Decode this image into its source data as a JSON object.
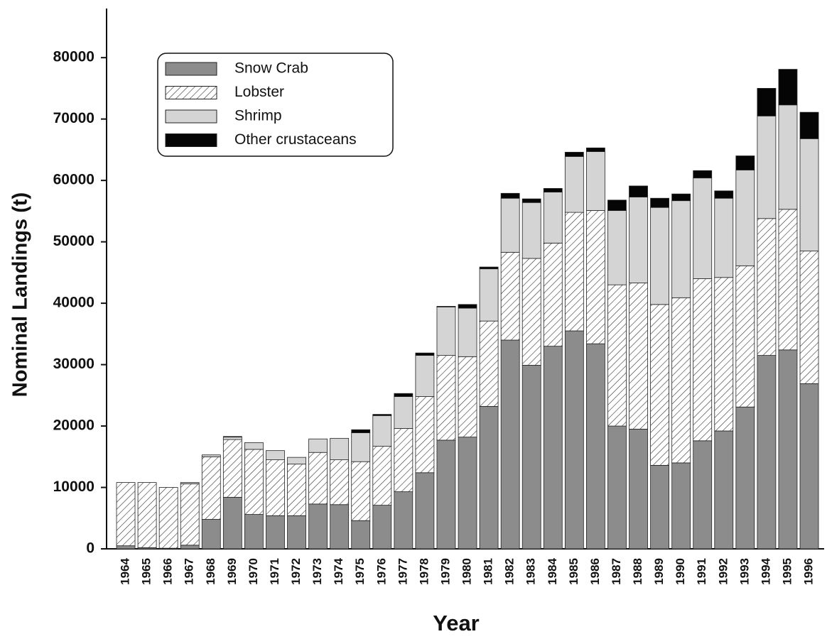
{
  "chart_data": {
    "type": "stacked_bar",
    "xlabel": "Year",
    "ylabel": "Nominal Landings (t)",
    "categories": [
      "1964",
      "1965",
      "1966",
      "1967",
      "1968",
      "1969",
      "1970",
      "1971",
      "1972",
      "1973",
      "1974",
      "1975",
      "1976",
      "1977",
      "1978",
      "1979",
      "1980",
      "1981",
      "1982",
      "1983",
      "1984",
      "1985",
      "1986",
      "1987",
      "1988",
      "1989",
      "1990",
      "1991",
      "1992",
      "1993",
      "1994",
      "1995",
      "1996"
    ],
    "series": [
      {
        "name": "Snow Crab",
        "color": "#8c8c8c",
        "hatch": false,
        "values": [
          500,
          200,
          100,
          600,
          4800,
          8400,
          5600,
          5400,
          5400,
          7300,
          7200,
          4600,
          7100,
          9300,
          12400,
          17700,
          18200,
          23200,
          34000,
          29900,
          33000,
          35500,
          33400,
          20000,
          19500,
          13600,
          14000,
          17600,
          19200,
          23100,
          31500,
          32400,
          26900
        ]
      },
      {
        "name": "Lobster",
        "color": "#ffffff",
        "hatch": true,
        "values": [
          10300,
          10600,
          9900,
          10000,
          10200,
          9400,
          10600,
          9100,
          8400,
          8400,
          7300,
          9600,
          9600,
          10300,
          12400,
          13800,
          13100,
          13900,
          14300,
          17400,
          16800,
          19300,
          21700,
          23000,
          23800,
          26200,
          26900,
          26400,
          25000,
          23000,
          22300,
          22900,
          21600
        ]
      },
      {
        "name": "Shrimp",
        "color": "#d4d4d4",
        "hatch": false,
        "values": [
          0,
          0,
          0,
          200,
          300,
          400,
          1100,
          1500,
          1100,
          2200,
          3500,
          4700,
          5000,
          5200,
          6700,
          7900,
          7900,
          8500,
          8800,
          9100,
          8300,
          9100,
          9600,
          12100,
          14000,
          15800,
          15800,
          16400,
          12900,
          15600,
          16700,
          17000,
          18300
        ]
      },
      {
        "name": "Other crustaceans",
        "color": "#050505",
        "hatch": false,
        "values": [
          0,
          0,
          0,
          0,
          0,
          100,
          0,
          0,
          0,
          0,
          0,
          500,
          200,
          500,
          400,
          100,
          600,
          300,
          800,
          600,
          600,
          700,
          600,
          1700,
          1800,
          1500,
          1100,
          1200,
          1200,
          2300,
          4500,
          5800,
          4300
        ]
      }
    ],
    "ylim": [
      0,
      88000
    ],
    "yticks": [
      0,
      10000,
      20000,
      30000,
      40000,
      50000,
      60000,
      70000,
      80000
    ],
    "legend": "upper left"
  }
}
